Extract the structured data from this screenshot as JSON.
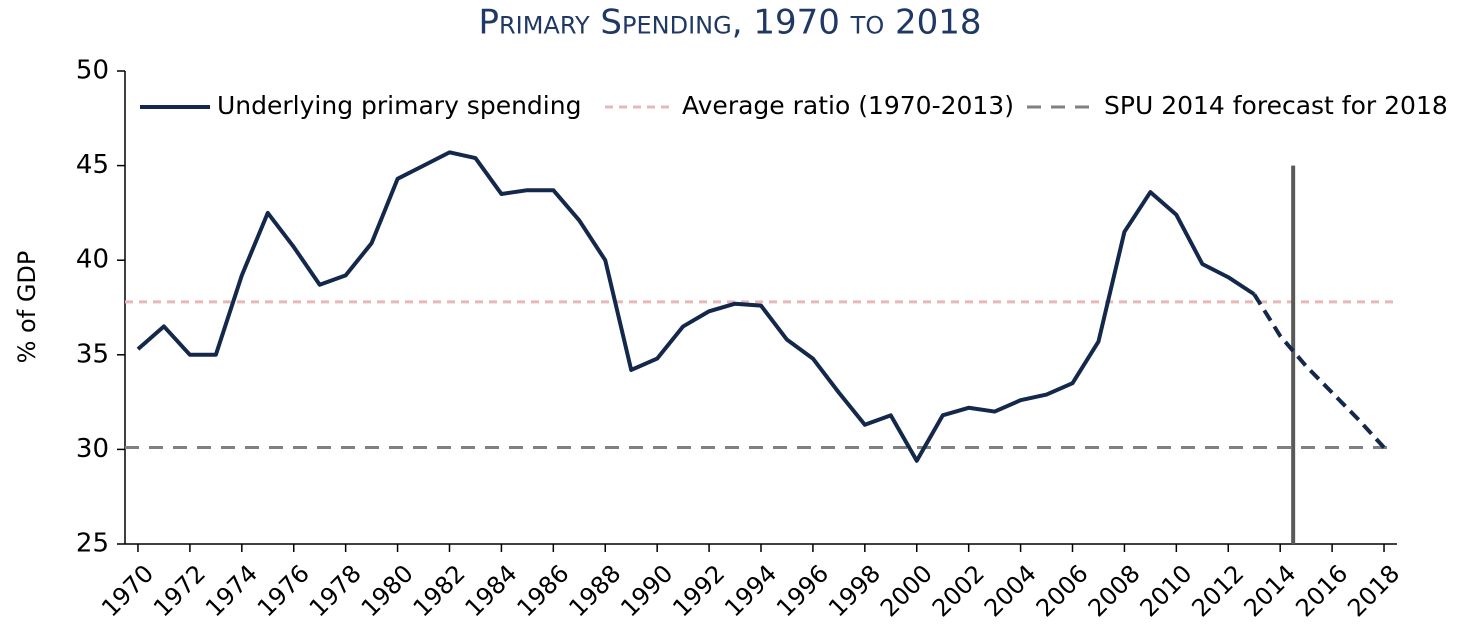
{
  "chart_data": {
    "type": "line",
    "title": "Primary Spending, 1970 to 2018",
    "y_label": "% of GDP",
    "x": [
      1970,
      1971,
      1972,
      1973,
      1974,
      1975,
      1976,
      1977,
      1978,
      1979,
      1980,
      1981,
      1982,
      1983,
      1984,
      1985,
      1986,
      1987,
      1988,
      1989,
      1990,
      1991,
      1992,
      1993,
      1994,
      1995,
      1996,
      1997,
      1998,
      1999,
      2000,
      2001,
      2002,
      2003,
      2004,
      2005,
      2006,
      2007,
      2008,
      2009,
      2010,
      2011,
      2012,
      2013,
      2014,
      2015,
      2016,
      2017,
      2018
    ],
    "xlim": [
      1969.5,
      2018.5
    ],
    "xticks": [
      1970,
      1972,
      1974,
      1976,
      1978,
      1980,
      1982,
      1984,
      1986,
      1988,
      1990,
      1992,
      1994,
      1996,
      1998,
      2000,
      2002,
      2004,
      2006,
      2008,
      2010,
      2012,
      2014,
      2016,
      2018
    ],
    "ylim": [
      25,
      50
    ],
    "yticks": [
      25,
      30,
      35,
      40,
      45,
      50
    ],
    "series": [
      {
        "name": "Underlying primary spending",
        "color": "#13284b",
        "dash": false,
        "values": [
          35.3,
          36.5,
          35.0,
          35.0,
          39.2,
          42.5,
          40.7,
          38.7,
          39.2,
          40.9,
          44.3,
          45.0,
          45.7,
          45.4,
          43.5,
          43.7,
          43.7,
          42.1,
          40.0,
          34.2,
          34.8,
          36.5,
          37.3,
          37.7,
          37.6,
          35.8,
          34.8,
          33.0,
          31.3,
          31.8,
          29.4,
          31.8,
          32.2,
          32.0,
          32.6,
          32.9,
          33.5,
          35.7,
          41.5,
          43.6,
          42.4,
          39.8,
          39.1,
          38.2,
          null,
          null,
          null,
          null,
          null
        ]
      },
      {
        "color": "#13284b",
        "dash": true,
        "values": [
          null,
          null,
          null,
          null,
          null,
          null,
          null,
          null,
          null,
          null,
          null,
          null,
          null,
          null,
          null,
          null,
          null,
          null,
          null,
          null,
          null,
          null,
          null,
          null,
          null,
          null,
          null,
          null,
          null,
          null,
          null,
          null,
          null,
          null,
          null,
          null,
          null,
          null,
          null,
          null,
          null,
          null,
          null,
          38.2,
          36.0,
          34.4,
          33.0,
          31.6,
          30.1
        ]
      }
    ],
    "reference_lines": [
      {
        "name": "Average ratio (1970-2013)",
        "value": 37.8,
        "color": "#e6b8b7"
      },
      {
        "name": "SPU 2014 forecast for 2018",
        "value": 30.1,
        "color": "#808080"
      }
    ],
    "vertical_line": {
      "x": 2014.5,
      "top": 45,
      "color": "#595959"
    }
  }
}
